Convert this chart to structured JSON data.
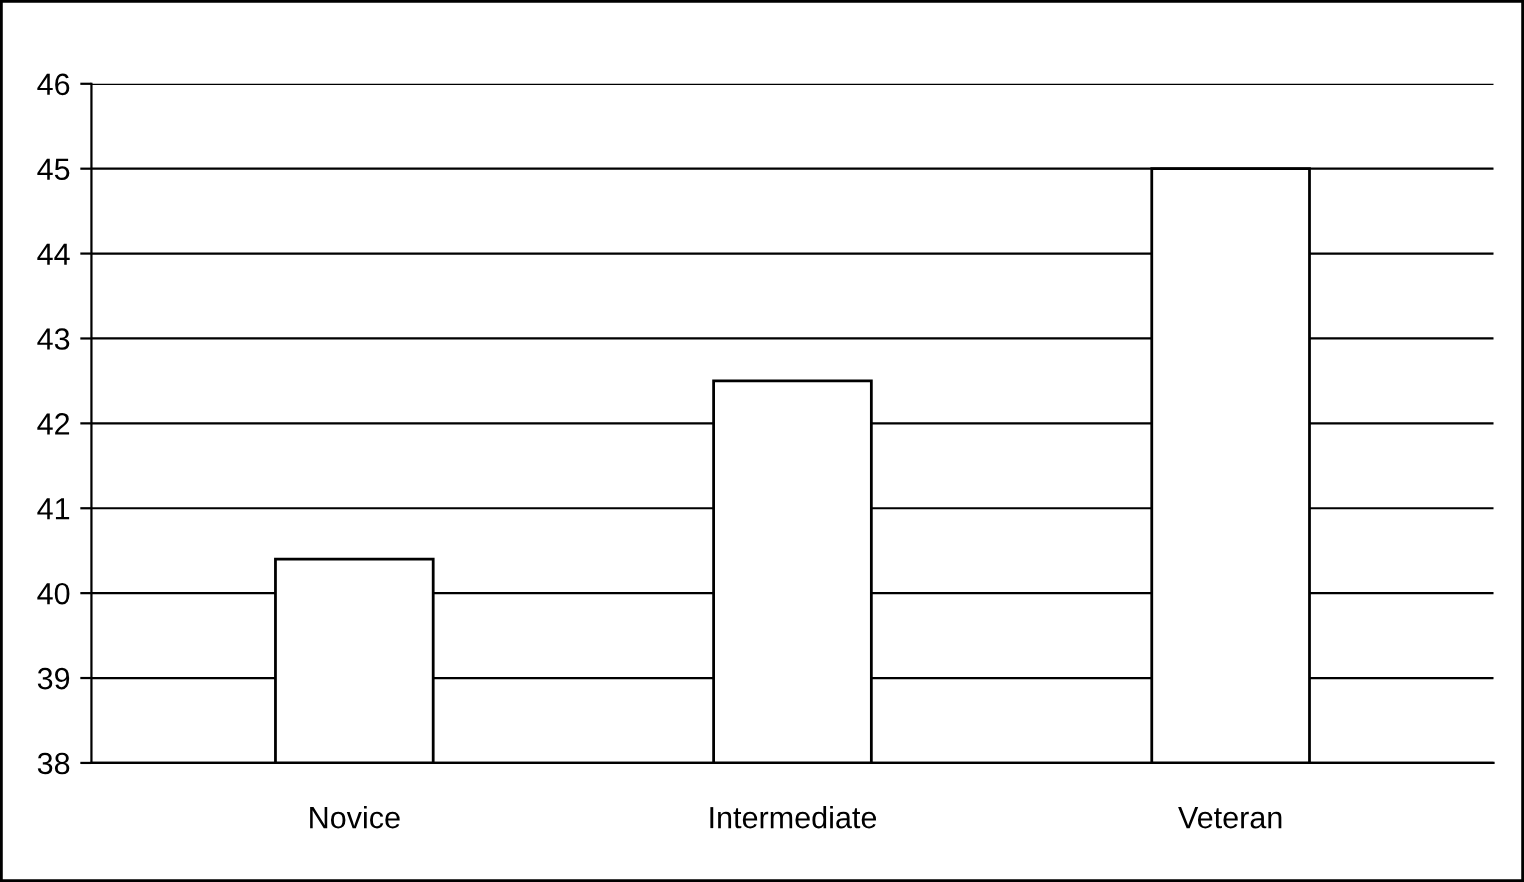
{
  "chart_data": {
    "type": "bar",
    "categories": [
      "Novice",
      "Intermediate",
      "Veteran"
    ],
    "values": [
      40.4,
      42.5,
      45.0
    ],
    "color": "#ffffff",
    "ylim": [
      38,
      46
    ],
    "yticks": [
      38,
      39,
      40,
      41,
      42,
      43,
      44,
      45,
      46
    ],
    "grid": "y",
    "legend": false
  }
}
